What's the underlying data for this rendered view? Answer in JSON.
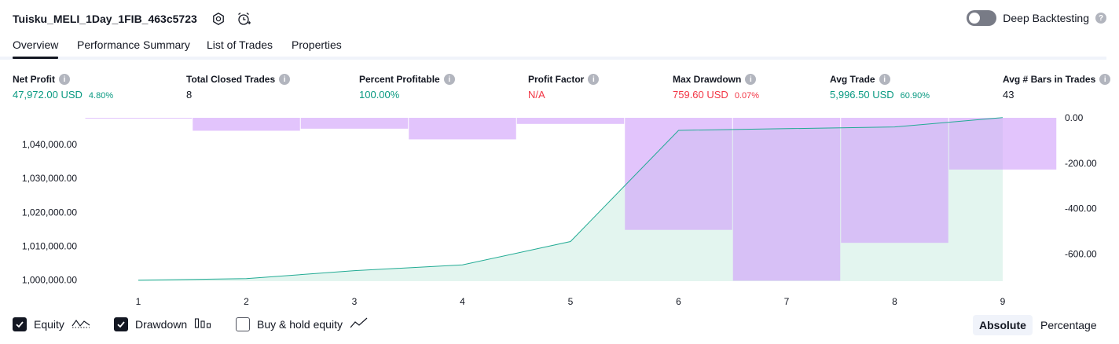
{
  "header": {
    "strategy_name": "Tuisku_MELI_1Day_1FIB_463c5723",
    "settings_icon": "settings-gear-icon",
    "alert_icon": "alarm-clock-plus-icon",
    "deep_backtesting_label": "Deep Backtesting",
    "deep_backtesting_enabled": false
  },
  "tabs": [
    {
      "label": "Overview",
      "active": true
    },
    {
      "label": "Performance Summary",
      "active": false
    },
    {
      "label": "List of Trades",
      "active": false
    },
    {
      "label": "Properties",
      "active": false
    }
  ],
  "metrics": {
    "net_profit": {
      "label": "Net Profit",
      "value": "47,972.00 USD",
      "pct": "4.80%"
    },
    "total_closed_trades": {
      "label": "Total Closed Trades",
      "value": "8"
    },
    "percent_profitable": {
      "label": "Percent Profitable",
      "value": "100.00%"
    },
    "profit_factor": {
      "label": "Profit Factor",
      "value": "N/A"
    },
    "max_drawdown": {
      "label": "Max Drawdown",
      "value": "759.60 USD",
      "pct": "0.07%"
    },
    "avg_trade": {
      "label": "Avg Trade",
      "value": "5,996.50 USD",
      "pct": "60.90%"
    },
    "avg_bars": {
      "label": "Avg # Bars in Trades",
      "value": "43"
    }
  },
  "colors": {
    "positive": "#089981",
    "negative": "#f23645",
    "equity_line": "#22ab94",
    "equity_fill": "#e3f5ef",
    "drawdown_fill": "#ce9cfa"
  },
  "chart_data": {
    "type": "area",
    "x": [
      1,
      2,
      3,
      4,
      5,
      6,
      7,
      8,
      9
    ],
    "xlabel": "",
    "left_axis": {
      "ticks": [
        1000000,
        1010000,
        1020000,
        1030000,
        1040000
      ],
      "tick_labels": [
        "1,000,000.00",
        "1,010,000.00",
        "1,020,000.00",
        "1,030,000.00",
        "1,040,000.00"
      ],
      "ylim": [
        999700,
        1047900
      ]
    },
    "right_axis": {
      "ticks": [
        0,
        -200,
        -400,
        -600
      ],
      "tick_labels": [
        "0.00",
        "-200.00",
        "-400.00",
        "-600.00"
      ],
      "ylim": [
        -720,
        0
      ]
    },
    "grid": false,
    "series": [
      {
        "name": "Equity",
        "type": "area",
        "axis": "left",
        "values": [
          1000000,
          1000450,
          1002800,
          1004500,
          1011400,
          1044200,
          1044700,
          1045200,
          1047972
        ]
      },
      {
        "name": "Drawdown",
        "type": "bar",
        "axis": "right",
        "x": [
          0.5,
          2,
          3,
          4,
          5,
          6,
          7,
          8,
          9
        ],
        "values": [
          -3,
          -57,
          -48,
          -95,
          -27,
          -494,
          -718,
          -551,
          -228
        ]
      }
    ]
  },
  "legend": {
    "equity": {
      "label": "Equity",
      "checked": true,
      "icon": "equity-wave-icon"
    },
    "drawdown": {
      "label": "Drawdown",
      "checked": true,
      "icon": "drawdown-bars-icon"
    },
    "buy_hold": {
      "label": "Buy & hold equity",
      "checked": false,
      "icon": "buy-hold-line-icon"
    }
  },
  "mode": {
    "absolute_label": "Absolute",
    "percentage_label": "Percentage",
    "active": "Absolute"
  }
}
